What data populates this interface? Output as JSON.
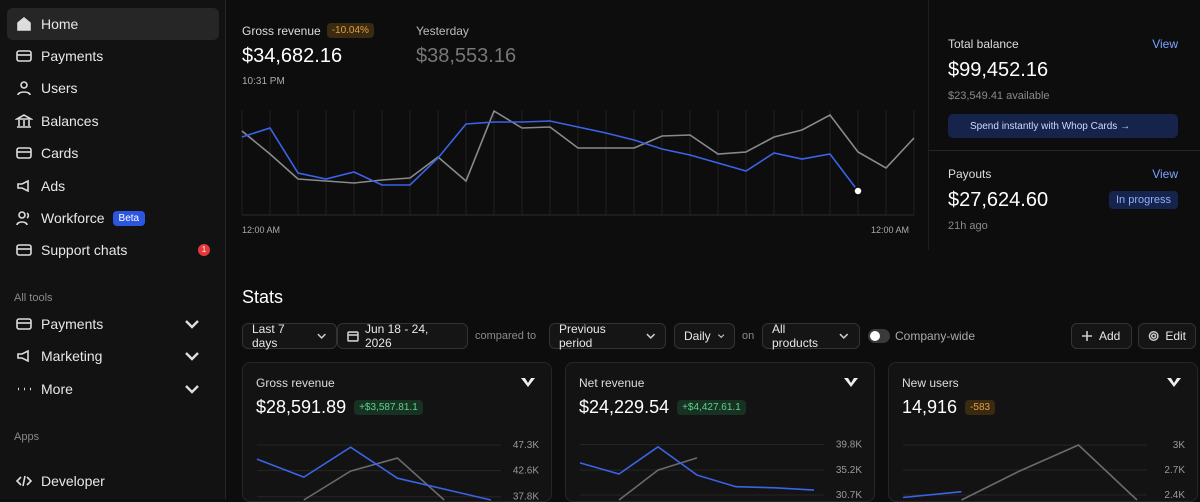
{
  "sidebar": {
    "items": [
      {
        "label": "Home"
      },
      {
        "label": "Payments"
      },
      {
        "label": "Users"
      },
      {
        "label": "Balances"
      },
      {
        "label": "Cards"
      },
      {
        "label": "Ads"
      },
      {
        "label": "Workforce",
        "badge": "Beta"
      },
      {
        "label": "Support chats",
        "count": 1
      }
    ],
    "all_tools_heading": "All tools",
    "tools": [
      {
        "label": "Payments"
      },
      {
        "label": "Marketing"
      },
      {
        "label": "More"
      }
    ],
    "apps_heading": "Apps",
    "apps": [
      {
        "label": "Developer"
      }
    ]
  },
  "revenue": {
    "label": "Gross revenue",
    "change": "-10.04%",
    "value": "$34,682.16",
    "time": "10:31 PM",
    "yesterday_label": "Yesterday",
    "yesterday_value": "$38,553.16",
    "chart": {
      "type": "line",
      "ylim": [
        0,
        105
      ],
      "x_labels": [
        "12:00 AM",
        "12:00 AM"
      ],
      "series": [
        {
          "color": "#8a8a8a",
          "values": [
            84,
            61,
            36,
            34,
            32,
            35,
            37,
            58,
            34,
            104,
            87,
            88,
            67,
            67,
            67,
            79,
            80,
            61,
            63,
            78,
            85,
            100,
            63,
            47,
            77
          ]
        },
        {
          "color": "#3b63e8",
          "values": [
            78,
            87,
            42,
            36,
            43,
            30,
            30,
            57,
            91,
            93,
            93,
            94,
            88,
            82,
            75,
            66,
            60,
            52,
            44,
            62,
            56,
            61,
            24,
            null,
            null
          ]
        }
      ]
    }
  },
  "balance": {
    "label": "Total balance",
    "link": "View",
    "value": "$99,452.16",
    "available": "$23,549.41 available",
    "button": "Spend instantly with Whop Cards →"
  },
  "payouts": {
    "label": "Payouts",
    "link": "View",
    "value": "$27,624.60",
    "status": "In progress",
    "time": "21h ago"
  },
  "stats": {
    "title": "Stats",
    "range": "Last 7 days",
    "dates": "Jun 18 - 24, 2026",
    "compared_to": "compared to",
    "comparison": "Previous period",
    "interval": "Daily",
    "on": "on",
    "products": "All products",
    "company_wide": "Company-wide",
    "add": "Add",
    "edit": "Edit",
    "cards": [
      {
        "title": "Gross revenue",
        "value": "$28,591.89",
        "change": "+$3,587.81.1",
        "chart": {
          "type": "line",
          "ylim": [
            37200,
            49500
          ],
          "yticks": [
            {
              "value": 47300,
              "label": "47.3K"
            },
            {
              "value": 42600,
              "label": "42.6K"
            },
            {
              "value": 37800,
              "label": "37.8K"
            }
          ],
          "series": [
            {
              "color": "#6a6a6a",
              "values": [
                null,
                37200,
                42500,
                44900,
                37200,
                null
              ]
            },
            {
              "color": "#3b63e8",
              "values": [
                44700,
                41400,
                46900,
                41200,
                39200,
                37200
              ]
            }
          ]
        }
      },
      {
        "title": "Net revenue",
        "value": "$24,229.54",
        "change": "+$4,427.61.1",
        "chart": {
          "type": "line",
          "ylim": [
            29800,
            41900
          ],
          "yticks": [
            {
              "value": 39800,
              "label": "39.8K"
            },
            {
              "value": 35200,
              "label": "35.2K"
            },
            {
              "value": 30700,
              "label": "30.7K"
            }
          ],
          "series": [
            {
              "color": "#6a6a6a",
              "values": [
                null,
                29800,
                35200,
                37400,
                null,
                null,
                null
              ]
            },
            {
              "color": "#3b63e8",
              "values": [
                36500,
                34500,
                39400,
                34300,
                32200,
                32000,
                31600
              ]
            }
          ]
        }
      },
      {
        "title": "New users",
        "value": "14,916",
        "change": "-583",
        "chart": {
          "type": "line",
          "ylim": [
            2340,
            3144
          ],
          "yticks": [
            {
              "value": 3000,
              "label": "3K"
            },
            {
              "value": 2700,
              "label": "2.7K"
            },
            {
              "value": 2400,
              "label": "2.4K"
            }
          ],
          "series": [
            {
              "color": "#6a6a6a",
              "values": [
                null,
                2340,
                2690,
                3000,
                2340
              ]
            },
            {
              "color": "#3b63e8",
              "values": [
                2370,
                2440,
                null,
                null,
                null
              ]
            }
          ]
        }
      }
    ]
  }
}
